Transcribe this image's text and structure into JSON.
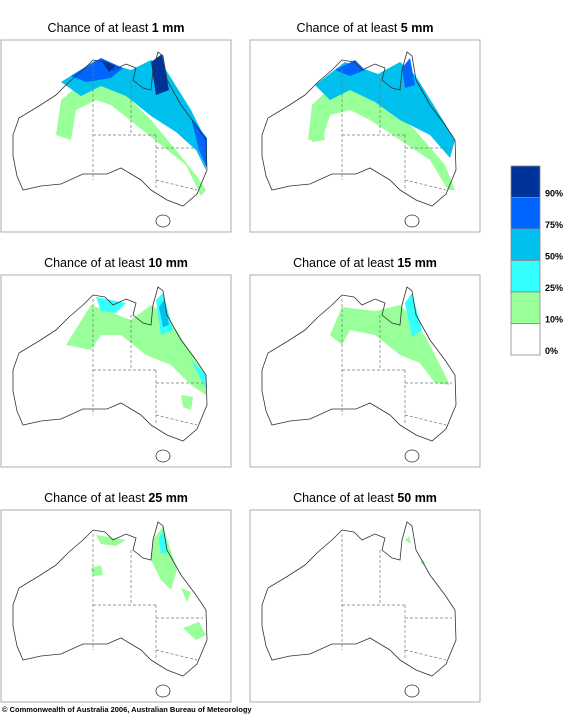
{
  "panels": [
    {
      "title": "Chance of at least",
      "amount": "1 mm"
    },
    {
      "title": "Chance of at least",
      "amount": "5 mm"
    },
    {
      "title": "Chance of at least",
      "amount": "10 mm"
    },
    {
      "title": "Chance of at least",
      "amount": "15 mm"
    },
    {
      "title": "Chance of at least",
      "amount": "25 mm"
    },
    {
      "title": "Chance of at least",
      "amount": "50 mm"
    }
  ],
  "legend": [
    {
      "color": "#003399",
      "label": "90%"
    },
    {
      "color": "#0066ff",
      "label": "75%"
    },
    {
      "color": "#00c0ee",
      "label": "50%"
    },
    {
      "color": "#33ffff",
      "label": "25%"
    },
    {
      "color": "#99ff99",
      "label": "10%"
    },
    {
      "color": "#ffffff",
      "label": "0%"
    }
  ],
  "footer": "© Commonwealth of Australia 2006, Australian Bureau of Meteorology"
}
